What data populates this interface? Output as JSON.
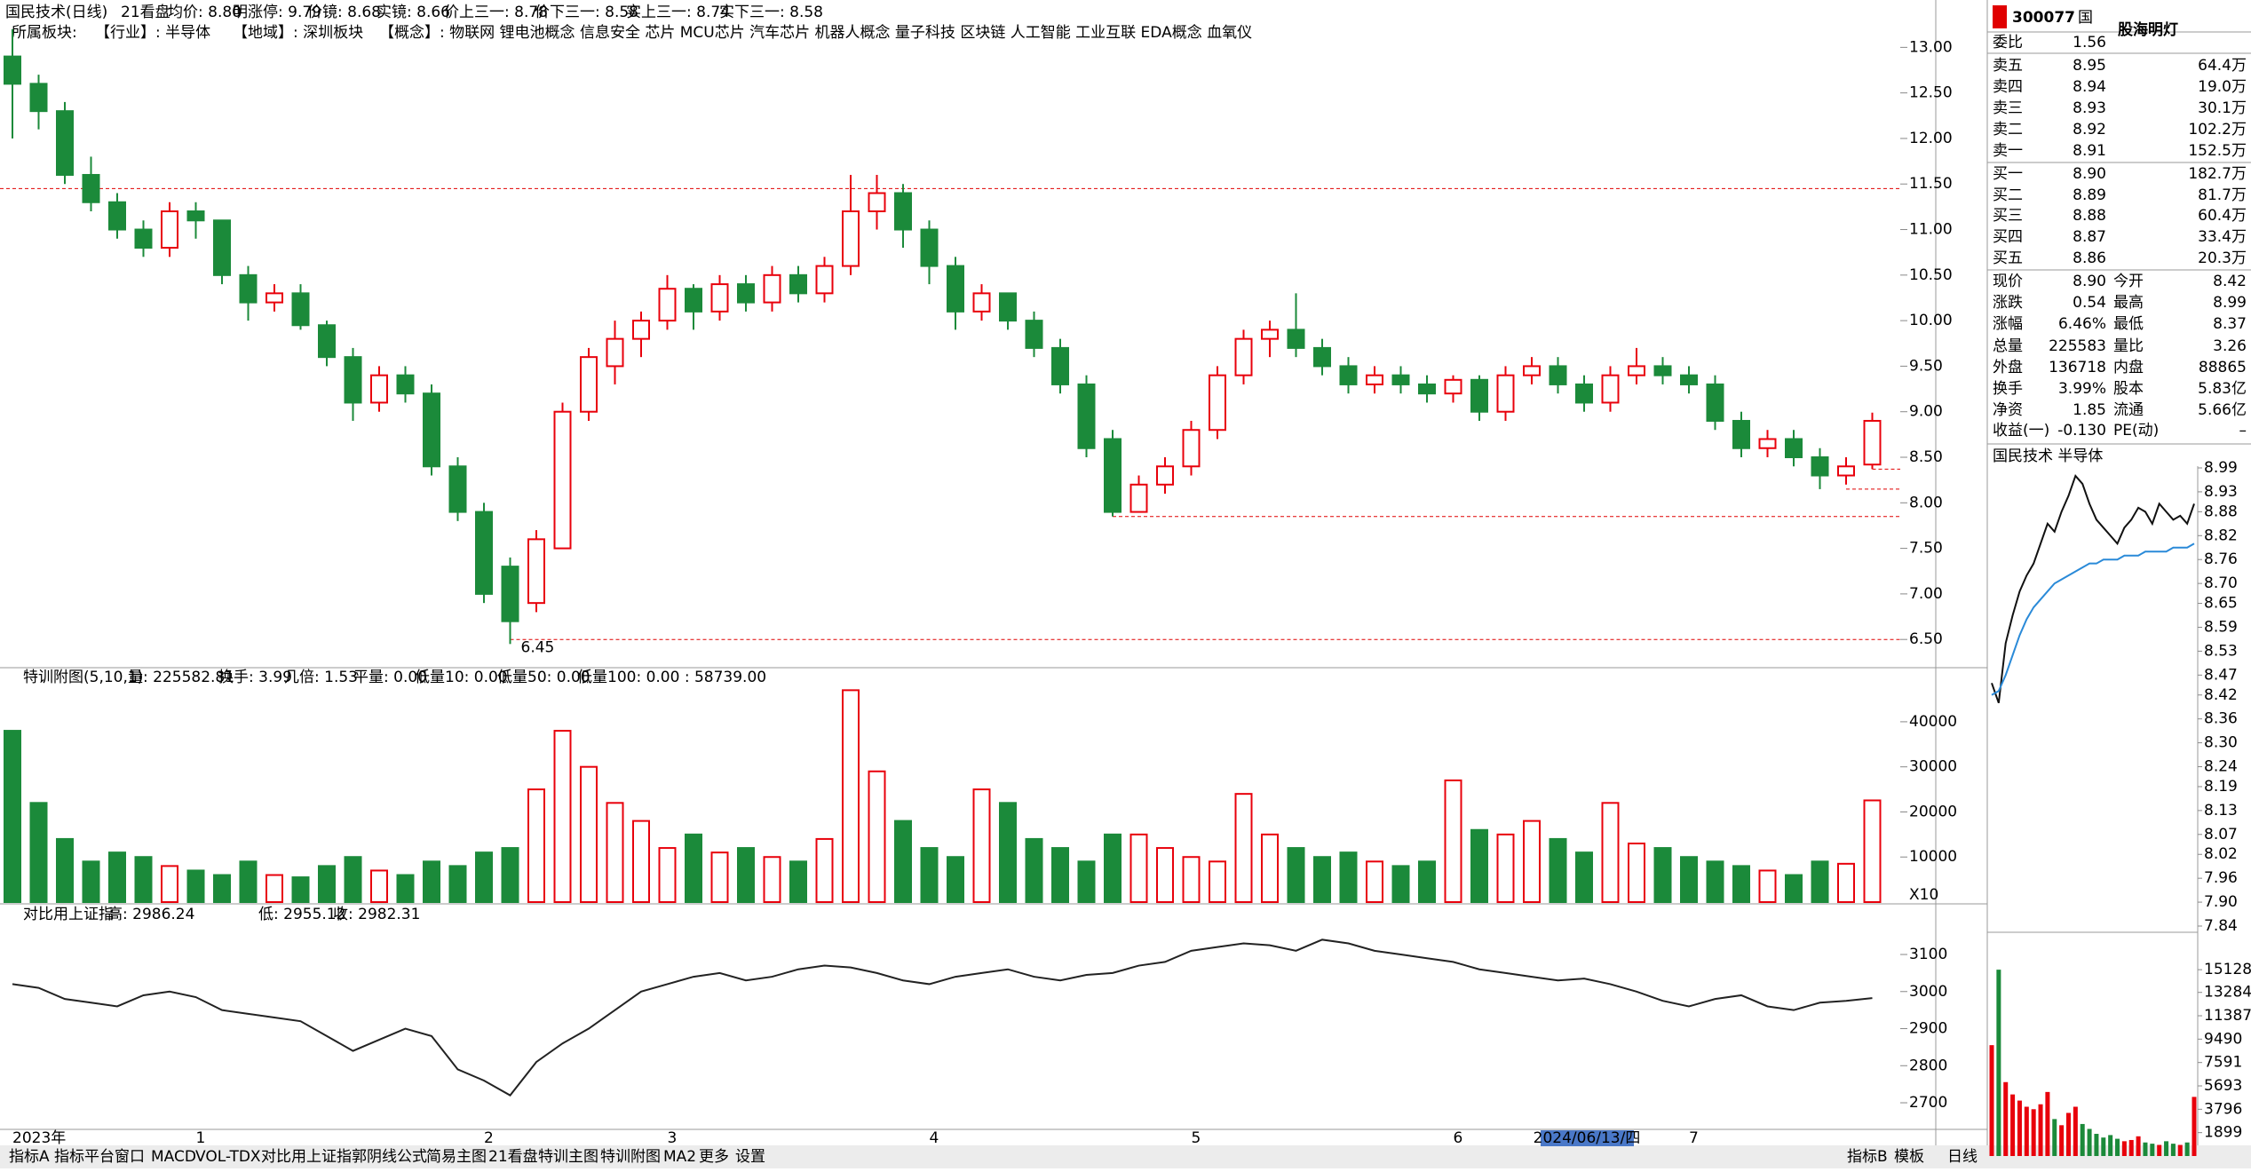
{
  "header": {
    "title": "国民技术(日线)",
    "items": [
      "21看盘",
      "均价: 8.80",
      "明涨停: 9.79",
      "价镜: 8.68",
      "实镜: 8.66",
      "价上三一: 8.78",
      "价下三一: 8.58",
      "实上三一: 8.74",
      "实下三一: 8.58"
    ],
    "colors": [
      "#000000",
      "#000000",
      "#e00000",
      "#9900cc",
      "#808080",
      "#009900",
      "#00aacc",
      "#000000",
      "#0000ee"
    ],
    "sector_line": [
      "所属板块:",
      "【行业】: 半导体",
      "【地域】: 深圳板块",
      "【概念】: 物联网 锂电池概念 信息安全 芯片 MCU芯片 汽车芯片 机器人概念 量子科技 区块链 人工智能 工业互联 EDA概念 血氧仪"
    ]
  },
  "chart_data": [
    {
      "type": "candlestick",
      "up_color": "#e8000b",
      "down_color": "#1b8a3a",
      "ylim": [
        6.19,
        13.52
      ],
      "yticks": [
        {
          "value": 6.5,
          "label": "6.50"
        },
        {
          "value": 7,
          "label": "7.00"
        },
        {
          "value": 7.5,
          "label": "7.50"
        },
        {
          "value": 8,
          "label": "8.00"
        },
        {
          "value": 8.5,
          "label": "8.50"
        },
        {
          "value": 9,
          "label": "9.00"
        },
        {
          "value": 9.5,
          "label": "9.50"
        },
        {
          "value": 10,
          "label": "10.00"
        },
        {
          "value": 10.5,
          "label": "10.50"
        },
        {
          "value": 11,
          "label": "11.00"
        },
        {
          "value": 11.5,
          "label": "11.50"
        },
        {
          "value": 12,
          "label": "12.00"
        },
        {
          "value": 12.5,
          "label": "12.50"
        },
        {
          "value": 13,
          "label": "13.00"
        }
      ],
      "categories": [
        "2023年",
        null,
        null,
        null,
        null,
        null,
        null,
        "1",
        null,
        null,
        null,
        null,
        null,
        null,
        null,
        null,
        null,
        null,
        "2",
        null,
        null,
        null,
        null,
        null,
        null,
        "3",
        null,
        null,
        null,
        null,
        null,
        null,
        null,
        null,
        null,
        "4",
        null,
        null,
        null,
        null,
        null,
        null,
        null,
        null,
        null,
        "5",
        null,
        null,
        null,
        null,
        null,
        null,
        null,
        null,
        null,
        "6",
        null,
        null,
        null,
        null,
        null,
        null,
        null,
        null,
        "7",
        null,
        null,
        null,
        null,
        null,
        null,
        null
      ],
      "cursor_date": "2024/06/13/四",
      "low_label": "6.45",
      "ref_lines": [
        {
          "value": 11.45,
          "full": true
        },
        {
          "value": 8.37,
          "full": false
        },
        {
          "value": 8.15,
          "full": false
        },
        {
          "value": 7.85,
          "full": false
        },
        {
          "value": 6.5,
          "full": false
        }
      ],
      "ohlc": [
        [
          12.9,
          13.2,
          12.0,
          12.6
        ],
        [
          12.6,
          12.7,
          12.1,
          12.3
        ],
        [
          12.3,
          12.4,
          11.5,
          11.6
        ],
        [
          11.6,
          11.8,
          11.2,
          11.3
        ],
        [
          11.3,
          11.4,
          10.9,
          11.0
        ],
        [
          11.0,
          11.1,
          10.7,
          10.8
        ],
        [
          10.8,
          11.3,
          10.7,
          11.2
        ],
        [
          11.2,
          11.3,
          10.9,
          11.1
        ],
        [
          11.1,
          11.1,
          10.4,
          10.5
        ],
        [
          10.5,
          10.6,
          10.0,
          10.2
        ],
        [
          10.2,
          10.4,
          10.1,
          10.3
        ],
        [
          10.3,
          10.4,
          9.9,
          9.95
        ],
        [
          9.95,
          10.0,
          9.5,
          9.6
        ],
        [
          9.6,
          9.7,
          8.9,
          9.1
        ],
        [
          9.1,
          9.5,
          9.0,
          9.4
        ],
        [
          9.4,
          9.5,
          9.1,
          9.2
        ],
        [
          9.2,
          9.3,
          8.3,
          8.4
        ],
        [
          8.4,
          8.5,
          7.8,
          7.9
        ],
        [
          7.9,
          8.0,
          6.9,
          7.0
        ],
        [
          7.3,
          7.4,
          6.45,
          6.7
        ],
        [
          6.9,
          7.7,
          6.8,
          7.6
        ],
        [
          7.5,
          9.1,
          7.5,
          9.0
        ],
        [
          9.0,
          9.7,
          8.9,
          9.6
        ],
        [
          9.5,
          10.0,
          9.3,
          9.8
        ],
        [
          9.8,
          10.1,
          9.6,
          10.0
        ],
        [
          10.0,
          10.5,
          9.9,
          10.35
        ],
        [
          10.35,
          10.4,
          9.9,
          10.1
        ],
        [
          10.1,
          10.5,
          10.0,
          10.4
        ],
        [
          10.4,
          10.5,
          10.1,
          10.2
        ],
        [
          10.2,
          10.6,
          10.1,
          10.5
        ],
        [
          10.5,
          10.6,
          10.2,
          10.3
        ],
        [
          10.3,
          10.7,
          10.2,
          10.6
        ],
        [
          10.6,
          11.6,
          10.5,
          11.2
        ],
        [
          11.2,
          11.6,
          11.0,
          11.4
        ],
        [
          11.4,
          11.5,
          10.8,
          11.0
        ],
        [
          11.0,
          11.1,
          10.4,
          10.6
        ],
        [
          10.6,
          10.7,
          9.9,
          10.1
        ],
        [
          10.1,
          10.4,
          10.0,
          10.3
        ],
        [
          10.3,
          10.3,
          9.9,
          10.0
        ],
        [
          10.0,
          10.1,
          9.6,
          9.7
        ],
        [
          9.7,
          9.8,
          9.2,
          9.3
        ],
        [
          9.3,
          9.4,
          8.5,
          8.6
        ],
        [
          8.7,
          8.8,
          7.85,
          7.9
        ],
        [
          7.9,
          8.3,
          7.9,
          8.2
        ],
        [
          8.2,
          8.5,
          8.1,
          8.4
        ],
        [
          8.4,
          8.9,
          8.3,
          8.8
        ],
        [
          8.8,
          9.5,
          8.7,
          9.4
        ],
        [
          9.4,
          9.9,
          9.3,
          9.8
        ],
        [
          9.8,
          10.0,
          9.6,
          9.9
        ],
        [
          9.9,
          10.3,
          9.6,
          9.7
        ],
        [
          9.7,
          9.8,
          9.4,
          9.5
        ],
        [
          9.5,
          9.6,
          9.2,
          9.3
        ],
        [
          9.3,
          9.5,
          9.2,
          9.4
        ],
        [
          9.4,
          9.5,
          9.2,
          9.3
        ],
        [
          9.3,
          9.4,
          9.1,
          9.2
        ],
        [
          9.2,
          9.4,
          9.1,
          9.35
        ],
        [
          9.35,
          9.4,
          8.9,
          9.0
        ],
        [
          9.0,
          9.5,
          8.9,
          9.4
        ],
        [
          9.4,
          9.6,
          9.3,
          9.5
        ],
        [
          9.5,
          9.6,
          9.2,
          9.3
        ],
        [
          9.3,
          9.4,
          9.0,
          9.1
        ],
        [
          9.1,
          9.5,
          9.0,
          9.4
        ],
        [
          9.4,
          9.7,
          9.3,
          9.5
        ],
        [
          9.5,
          9.6,
          9.3,
          9.4
        ],
        [
          9.4,
          9.5,
          9.2,
          9.3
        ],
        [
          9.3,
          9.4,
          8.8,
          8.9
        ],
        [
          8.9,
          9.0,
          8.5,
          8.6
        ],
        [
          8.6,
          8.8,
          8.5,
          8.7
        ],
        [
          8.7,
          8.8,
          8.4,
          8.5
        ],
        [
          8.5,
          8.6,
          8.15,
          8.3
        ],
        [
          8.3,
          8.5,
          8.2,
          8.4
        ],
        [
          8.42,
          8.99,
          8.37,
          8.9
        ]
      ]
    },
    {
      "type": "bar",
      "items": [
        "特训附图(5,10,1)",
        "量: 225582.81",
        "换手: 3.99",
        "几倍: 1.53",
        "平量: 0.00",
        "低量10: 0.00",
        "低量50: 0.00",
        "低量100: 0.00 : 58739.00"
      ],
      "colors": [
        "#000000",
        "#000000",
        "#e00000",
        "#ff9900",
        "#808080",
        "#e00000",
        "#0000ee",
        "#cc00cc"
      ],
      "scale_label": "X10",
      "ylim": [
        0,
        51800
      ],
      "yticks": [
        10000,
        20000,
        30000,
        40000
      ],
      "values": [
        38000,
        22000,
        14000,
        9000,
        11000,
        10000,
        8000,
        7000,
        6000,
        9000,
        6000,
        5500,
        8000,
        10000,
        7000,
        6000,
        9000,
        8000,
        11000,
        12000,
        25000,
        38000,
        30000,
        22000,
        18000,
        12000,
        15000,
        11000,
        12000,
        10000,
        9000,
        14000,
        47000,
        29000,
        18000,
        12000,
        10000,
        25000,
        22000,
        14000,
        12000,
        9000,
        15000,
        15000,
        12000,
        10000,
        9000,
        24000,
        15000,
        12000,
        10000,
        11000,
        9000,
        8000,
        9000,
        27000,
        16000,
        15000,
        18000,
        14000,
        11000,
        22000,
        13000,
        12000,
        10000,
        9000,
        8000,
        7000,
        6000,
        9000,
        8500,
        22558
      ]
    },
    {
      "type": "line",
      "items": [
        "对比用上证指",
        "高: 2986.24",
        "低: 2955.12",
        "收: 2982.31"
      ],
      "colors": [
        "#000000",
        "#e00000",
        "#e00000",
        "#009900"
      ],
      "color": "#222222",
      "ylim": [
        2633,
        3227
      ],
      "yticks": [
        2700,
        2800,
        2900,
        3000,
        3100
      ],
      "values": [
        3020,
        3010,
        2980,
        2970,
        2960,
        2990,
        3000,
        2985,
        2950,
        2940,
        2930,
        2920,
        2880,
        2840,
        2870,
        2900,
        2880,
        2790,
        2760,
        2720,
        2810,
        2860,
        2900,
        2950,
        3000,
        3020,
        3040,
        3050,
        3030,
        3040,
        3060,
        3070,
        3065,
        3050,
        3030,
        3020,
        3040,
        3050,
        3060,
        3040,
        3030,
        3045,
        3050,
        3070,
        3080,
        3110,
        3120,
        3130,
        3125,
        3110,
        3140,
        3130,
        3110,
        3100,
        3090,
        3080,
        3060,
        3050,
        3040,
        3030,
        3035,
        3020,
        3000,
        2975,
        2960,
        2980,
        2990,
        2960,
        2950,
        2970,
        2975,
        2982.31
      ]
    },
    {
      "type": "line",
      "title": "国民技术  半导体",
      "ylim": [
        7.84,
        8.99
      ],
      "yticks": [
        8.99,
        8.93,
        8.88,
        8.82,
        8.76,
        {
          "value": 8.7,
          "label": "8.70"
        },
        8.65,
        8.59,
        8.53,
        8.47,
        8.42,
        8.36,
        {
          "value": 8.3,
          "label": "8.30"
        },
        8.24,
        8.19,
        8.13,
        8.07,
        8.02,
        7.96,
        {
          "value": 7.9,
          "label": "7.90"
        },
        7.84
      ],
      "series": [
        {
          "color": "#111111",
          "values": [
            8.45,
            8.4,
            8.55,
            8.62,
            8.68,
            8.72,
            8.75,
            8.8,
            8.85,
            8.83,
            8.88,
            8.92,
            8.97,
            8.95,
            8.9,
            8.86,
            8.84,
            8.82,
            8.8,
            8.84,
            8.86,
            8.89,
            8.88,
            8.85,
            8.9,
            8.88,
            8.86,
            8.87,
            8.85,
            8.9
          ]
        },
        {
          "color": "#2a8ad8",
          "values": [
            8.42,
            8.43,
            8.47,
            8.52,
            8.57,
            8.61,
            8.64,
            8.66,
            8.68,
            8.7,
            8.71,
            8.72,
            8.73,
            8.74,
            8.75,
            8.75,
            8.76,
            8.76,
            8.76,
            8.77,
            8.77,
            8.77,
            8.78,
            8.78,
            8.78,
            8.78,
            8.79,
            8.79,
            8.79,
            8.8
          ]
        }
      ]
    },
    {
      "type": "bar",
      "up_color": "#e8000b",
      "down_color": "#1b8a3a",
      "ylim": [
        0,
        17300
      ],
      "yticks": [
        15128,
        13284,
        11387,
        9490,
        7591,
        5693,
        3796,
        1899
      ],
      "values": [
        9000,
        15128,
        6000,
        5000,
        4500,
        4000,
        3800,
        4200,
        5200,
        3000,
        2500,
        3500,
        4000,
        2600,
        2200,
        1800,
        1500,
        1700,
        1400,
        1200,
        1300,
        1600,
        1100,
        1000,
        900,
        1200,
        1000,
        900,
        1100,
        4800
      ]
    }
  ],
  "quote": {
    "code": "300077",
    "market": "国",
    "watermark": "股海明灯",
    "ratio_label": "委比",
    "ratio": "1.56",
    "asks": [
      [
        "卖五",
        "8.95",
        "64.4万"
      ],
      [
        "卖四",
        "8.94",
        "19.0万"
      ],
      [
        "卖三",
        "8.93",
        "30.1万"
      ],
      [
        "卖二",
        "8.92",
        "102.2万"
      ],
      [
        "卖一",
        "8.91",
        "152.5万"
      ]
    ],
    "bids": [
      [
        "买一",
        "8.90",
        "182.7万"
      ],
      [
        "买二",
        "8.89",
        "81.7万"
      ],
      [
        "买三",
        "8.88",
        "60.4万"
      ],
      [
        "买四",
        "8.87",
        "33.4万"
      ],
      [
        "买五",
        "8.86",
        "20.3万"
      ]
    ],
    "stats": [
      [
        "现价",
        "8.90",
        "今开",
        "8.42"
      ],
      [
        "涨跌",
        "0.54",
        "最高",
        "8.99"
      ],
      [
        "涨幅",
        "6.46%",
        "最低",
        "8.37"
      ],
      [
        "总量",
        "225583",
        "量比",
        "3.26"
      ],
      [
        "外盘",
        "136718",
        "内盘",
        "88865"
      ],
      [
        "换手",
        "3.99%",
        "股本",
        "5.83亿"
      ],
      [
        "净资",
        "1.85",
        "流通",
        "5.66亿"
      ],
      [
        "收益(一)",
        "-0.130",
        "PE(动)",
        "–"
      ]
    ]
  },
  "tabs_left": [
    "指标A",
    "指标平台",
    "窗口",
    "MACD",
    "VOL-TDX",
    "对比用上证指",
    "郭阴线公式",
    "简易主图",
    "21看盘",
    "特训主图",
    "特训附图",
    "MA2",
    "更多",
    "设置"
  ],
  "tabs_right": [
    "指标B",
    "模板",
    "日线"
  ]
}
